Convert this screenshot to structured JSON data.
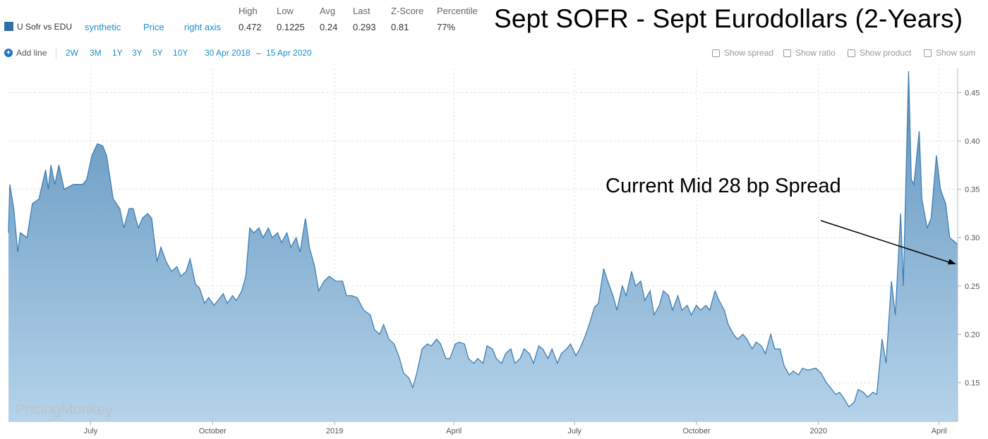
{
  "header": {
    "series_name": "U Sofr vs EDU",
    "links": [
      "synthetic",
      "Price",
      "right axis"
    ],
    "stats": [
      {
        "label": "High",
        "value": "0.472"
      },
      {
        "label": "Low",
        "value": "0.1225"
      },
      {
        "label": "Avg",
        "value": "0.24"
      },
      {
        "label": "Last",
        "value": "0.293"
      },
      {
        "label": "Z-Score",
        "value": "0.81"
      },
      {
        "label": "Percentile",
        "value": "77%"
      }
    ],
    "title": "Sept SOFR - Sept Eurodollars (2-Years)"
  },
  "toolbar": {
    "add_line": "Add line",
    "ranges": [
      "2W",
      "3M",
      "1Y",
      "3Y",
      "5Y",
      "10Y"
    ],
    "date_from": "30 Apr 2018",
    "date_sep": "–",
    "date_to": "15 Apr 2020",
    "options": [
      "Show spread",
      "Show ratio",
      "Show product",
      "Show sum"
    ]
  },
  "watermark": "PricingMonkey",
  "annotation": "Current Mid 28 bp Spread",
  "colors": {
    "line": "#3f7fb5",
    "fill_top": "#5f93bd",
    "fill_bottom": "#b5d3ea",
    "accent": "#1a8fc7"
  },
  "chart_data": {
    "type": "area",
    "title": "Sept SOFR - Sept Eurodollars (2-Years)",
    "x_range": [
      "2018-04-30",
      "2020-04-15"
    ],
    "ylim": [
      0.11,
      0.475
    ],
    "y_axis_side": "right",
    "y_ticks": [
      0.15,
      0.2,
      0.25,
      0.3,
      0.35,
      0.4,
      0.45
    ],
    "x_ticks": [
      {
        "date": "2018-07-01",
        "label": "July"
      },
      {
        "date": "2018-10-01",
        "label": "October"
      },
      {
        "date": "2019-01-01",
        "label": "2019"
      },
      {
        "date": "2019-04-01",
        "label": "April"
      },
      {
        "date": "2019-07-01",
        "label": "July"
      },
      {
        "date": "2019-10-01",
        "label": "October"
      },
      {
        "date": "2020-01-01",
        "label": "2020"
      },
      {
        "date": "2020-04-01",
        "label": "April"
      }
    ],
    "grid": true,
    "series": [
      {
        "values": [
          [
            "2018-04-30",
            0.305
          ],
          [
            "2018-05-01",
            0.355
          ],
          [
            "2018-05-04",
            0.33
          ],
          [
            "2018-05-07",
            0.285
          ],
          [
            "2018-05-09",
            0.305
          ],
          [
            "2018-05-14",
            0.3
          ],
          [
            "2018-05-18",
            0.335
          ],
          [
            "2018-05-23",
            0.34
          ],
          [
            "2018-05-28",
            0.37
          ],
          [
            "2018-05-30",
            0.35
          ],
          [
            "2018-06-01",
            0.375
          ],
          [
            "2018-06-04",
            0.355
          ],
          [
            "2018-06-07",
            0.375
          ],
          [
            "2018-06-11",
            0.35
          ],
          [
            "2018-06-18",
            0.355
          ],
          [
            "2018-06-25",
            0.355
          ],
          [
            "2018-06-28",
            0.36
          ],
          [
            "2018-07-02",
            0.385
          ],
          [
            "2018-07-06",
            0.397
          ],
          [
            "2018-07-10",
            0.395
          ],
          [
            "2018-07-13",
            0.385
          ],
          [
            "2018-07-18",
            0.34
          ],
          [
            "2018-07-23",
            0.33
          ],
          [
            "2018-07-26",
            0.31
          ],
          [
            "2018-07-30",
            0.33
          ],
          [
            "2018-08-02",
            0.33
          ],
          [
            "2018-08-06",
            0.31
          ],
          [
            "2018-08-09",
            0.32
          ],
          [
            "2018-08-13",
            0.325
          ],
          [
            "2018-08-16",
            0.32
          ],
          [
            "2018-08-20",
            0.275
          ],
          [
            "2018-08-23",
            0.29
          ],
          [
            "2018-08-27",
            0.275
          ],
          [
            "2018-08-31",
            0.265
          ],
          [
            "2018-09-04",
            0.27
          ],
          [
            "2018-09-07",
            0.26
          ],
          [
            "2018-09-11",
            0.265
          ],
          [
            "2018-09-14",
            0.278
          ],
          [
            "2018-09-18",
            0.252
          ],
          [
            "2018-09-21",
            0.248
          ],
          [
            "2018-09-25",
            0.232
          ],
          [
            "2018-09-28",
            0.238
          ],
          [
            "2018-10-02",
            0.23
          ],
          [
            "2018-10-05",
            0.235
          ],
          [
            "2018-10-09",
            0.242
          ],
          [
            "2018-10-12",
            0.232
          ],
          [
            "2018-10-16",
            0.24
          ],
          [
            "2018-10-19",
            0.235
          ],
          [
            "2018-10-23",
            0.245
          ],
          [
            "2018-10-26",
            0.26
          ],
          [
            "2018-10-29",
            0.31
          ],
          [
            "2018-11-01",
            0.305
          ],
          [
            "2018-11-05",
            0.31
          ],
          [
            "2018-11-08",
            0.3
          ],
          [
            "2018-11-12",
            0.31
          ],
          [
            "2018-11-15",
            0.3
          ],
          [
            "2018-11-19",
            0.305
          ],
          [
            "2018-11-22",
            0.295
          ],
          [
            "2018-11-26",
            0.305
          ],
          [
            "2018-11-29",
            0.29
          ],
          [
            "2018-12-03",
            0.3
          ],
          [
            "2018-12-06",
            0.285
          ],
          [
            "2018-12-10",
            0.32
          ],
          [
            "2018-12-13",
            0.29
          ],
          [
            "2018-12-17",
            0.27
          ],
          [
            "2018-12-20",
            0.245
          ],
          [
            "2018-12-24",
            0.255
          ],
          [
            "2018-12-28",
            0.26
          ],
          [
            "2019-01-02",
            0.255
          ],
          [
            "2019-01-07",
            0.255
          ],
          [
            "2019-01-10",
            0.24
          ],
          [
            "2019-01-14",
            0.24
          ],
          [
            "2019-01-18",
            0.238
          ],
          [
            "2019-01-23",
            0.225
          ],
          [
            "2019-01-28",
            0.22
          ],
          [
            "2019-01-31",
            0.205
          ],
          [
            "2019-02-04",
            0.2
          ],
          [
            "2019-02-07",
            0.21
          ],
          [
            "2019-02-11",
            0.195
          ],
          [
            "2019-02-15",
            0.19
          ],
          [
            "2019-02-19",
            0.175
          ],
          [
            "2019-02-22",
            0.16
          ],
          [
            "2019-02-26",
            0.155
          ],
          [
            "2019-03-01",
            0.145
          ],
          [
            "2019-03-04",
            0.16
          ],
          [
            "2019-03-08",
            0.185
          ],
          [
            "2019-03-12",
            0.19
          ],
          [
            "2019-03-15",
            0.188
          ],
          [
            "2019-03-19",
            0.195
          ],
          [
            "2019-03-22",
            0.19
          ],
          [
            "2019-03-26",
            0.175
          ],
          [
            "2019-03-29",
            0.175
          ],
          [
            "2019-04-02",
            0.19
          ],
          [
            "2019-04-05",
            0.192
          ],
          [
            "2019-04-09",
            0.19
          ],
          [
            "2019-04-12",
            0.175
          ],
          [
            "2019-04-16",
            0.17
          ],
          [
            "2019-04-19",
            0.175
          ],
          [
            "2019-04-23",
            0.17
          ],
          [
            "2019-04-26",
            0.188
          ],
          [
            "2019-04-30",
            0.185
          ],
          [
            "2019-05-03",
            0.175
          ],
          [
            "2019-05-07",
            0.17
          ],
          [
            "2019-05-10",
            0.18
          ],
          [
            "2019-05-14",
            0.185
          ],
          [
            "2019-05-17",
            0.17
          ],
          [
            "2019-05-21",
            0.175
          ],
          [
            "2019-05-24",
            0.185
          ],
          [
            "2019-05-28",
            0.18
          ],
          [
            "2019-05-31",
            0.17
          ],
          [
            "2019-06-04",
            0.188
          ],
          [
            "2019-06-07",
            0.185
          ],
          [
            "2019-06-11",
            0.175
          ],
          [
            "2019-06-14",
            0.185
          ],
          [
            "2019-06-18",
            0.17
          ],
          [
            "2019-06-21",
            0.18
          ],
          [
            "2019-06-25",
            0.185
          ],
          [
            "2019-06-28",
            0.19
          ],
          [
            "2019-07-02",
            0.178
          ],
          [
            "2019-07-05",
            0.185
          ],
          [
            "2019-07-09",
            0.198
          ],
          [
            "2019-07-12",
            0.21
          ],
          [
            "2019-07-16",
            0.228
          ],
          [
            "2019-07-19",
            0.232
          ],
          [
            "2019-07-23",
            0.268
          ],
          [
            "2019-07-26",
            0.255
          ],
          [
            "2019-07-30",
            0.24
          ],
          [
            "2019-08-02",
            0.225
          ],
          [
            "2019-08-06",
            0.25
          ],
          [
            "2019-08-09",
            0.24
          ],
          [
            "2019-08-13",
            0.265
          ],
          [
            "2019-08-16",
            0.25
          ],
          [
            "2019-08-20",
            0.255
          ],
          [
            "2019-08-23",
            0.235
          ],
          [
            "2019-08-27",
            0.245
          ],
          [
            "2019-08-30",
            0.22
          ],
          [
            "2019-09-03",
            0.23
          ],
          [
            "2019-09-06",
            0.245
          ],
          [
            "2019-09-10",
            0.24
          ],
          [
            "2019-09-13",
            0.225
          ],
          [
            "2019-09-17",
            0.24
          ],
          [
            "2019-09-20",
            0.225
          ],
          [
            "2019-09-24",
            0.23
          ],
          [
            "2019-09-27",
            0.22
          ],
          [
            "2019-10-01",
            0.23
          ],
          [
            "2019-10-04",
            0.225
          ],
          [
            "2019-10-08",
            0.23
          ],
          [
            "2019-10-11",
            0.225
          ],
          [
            "2019-10-15",
            0.245
          ],
          [
            "2019-10-18",
            0.235
          ],
          [
            "2019-10-22",
            0.225
          ],
          [
            "2019-10-25",
            0.21
          ],
          [
            "2019-10-29",
            0.2
          ],
          [
            "2019-11-01",
            0.195
          ],
          [
            "2019-11-05",
            0.2
          ],
          [
            "2019-11-08",
            0.195
          ],
          [
            "2019-11-12",
            0.185
          ],
          [
            "2019-11-15",
            0.192
          ],
          [
            "2019-11-19",
            0.188
          ],
          [
            "2019-11-22",
            0.18
          ],
          [
            "2019-11-26",
            0.2
          ],
          [
            "2019-11-29",
            0.185
          ],
          [
            "2019-12-03",
            0.185
          ],
          [
            "2019-12-06",
            0.168
          ],
          [
            "2019-12-10",
            0.158
          ],
          [
            "2019-12-13",
            0.162
          ],
          [
            "2019-12-17",
            0.158
          ],
          [
            "2019-12-20",
            0.165
          ],
          [
            "2019-12-24",
            0.163
          ],
          [
            "2019-12-30",
            0.165
          ],
          [
            "2020-01-03",
            0.16
          ],
          [
            "2020-01-07",
            0.15
          ],
          [
            "2020-01-10",
            0.145
          ],
          [
            "2020-01-14",
            0.138
          ],
          [
            "2020-01-17",
            0.14
          ],
          [
            "2020-01-21",
            0.132
          ],
          [
            "2020-01-24",
            0.125
          ],
          [
            "2020-01-28",
            0.13
          ],
          [
            "2020-01-31",
            0.143
          ],
          [
            "2020-02-04",
            0.14
          ],
          [
            "2020-02-07",
            0.135
          ],
          [
            "2020-02-11",
            0.14
          ],
          [
            "2020-02-14",
            0.138
          ],
          [
            "2020-02-18",
            0.195
          ],
          [
            "2020-02-21",
            0.17
          ],
          [
            "2020-02-25",
            0.255
          ],
          [
            "2020-02-28",
            0.22
          ],
          [
            "2020-03-03",
            0.325
          ],
          [
            "2020-03-05",
            0.25
          ],
          [
            "2020-03-09",
            0.472
          ],
          [
            "2020-03-11",
            0.36
          ],
          [
            "2020-03-13",
            0.355
          ],
          [
            "2020-03-17",
            0.41
          ],
          [
            "2020-03-19",
            0.34
          ],
          [
            "2020-03-23",
            0.31
          ],
          [
            "2020-03-26",
            0.32
          ],
          [
            "2020-03-30",
            0.385
          ],
          [
            "2020-04-02",
            0.35
          ],
          [
            "2020-04-06",
            0.335
          ],
          [
            "2020-04-09",
            0.3
          ],
          [
            "2020-04-15",
            0.293
          ]
        ]
      }
    ]
  }
}
